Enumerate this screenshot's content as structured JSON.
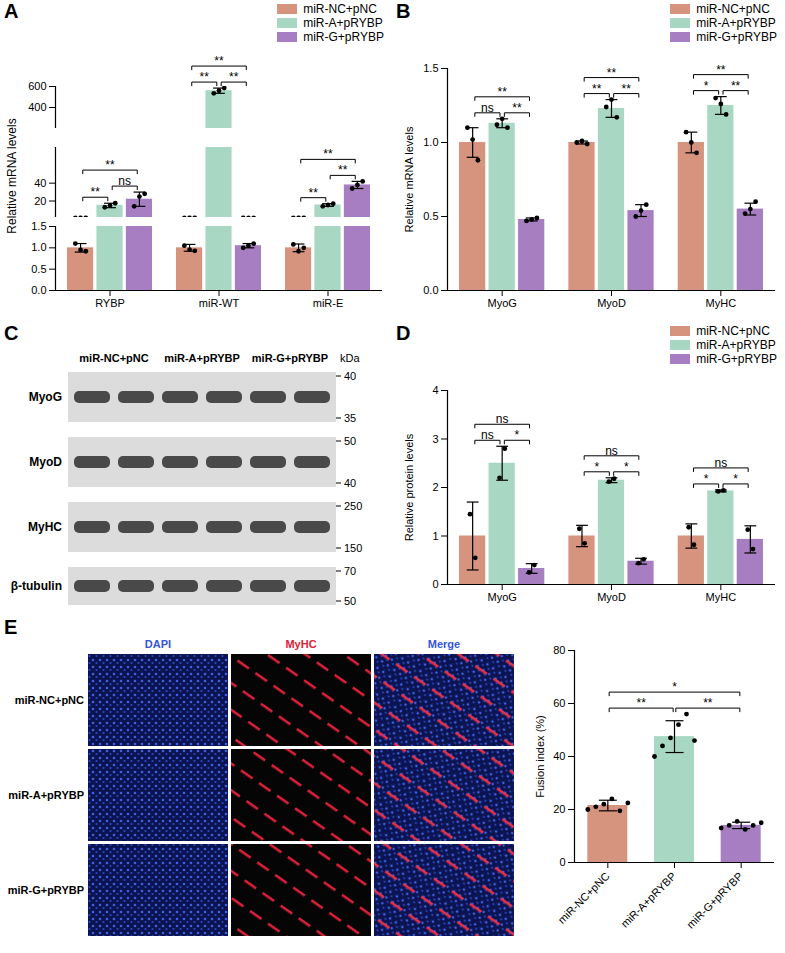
{
  "chart_data": [
    {
      "panel": "A",
      "type": "bar",
      "ylabel": "Relative mRNA levels",
      "legend": "top-right",
      "categories": [
        "RYBP",
        "miR-WT",
        "miR-E"
      ],
      "series": [
        {
          "name": "miR-NC+pNC",
          "color": "#d6937d",
          "values": [
            1.0,
            1.0,
            1.0
          ],
          "errors": [
            0.1,
            0.08,
            0.09
          ],
          "points": [
            [
              1.1,
              0.95,
              0.92
            ],
            [
              1.05,
              0.96,
              0.93
            ],
            [
              1.08,
              0.92,
              1.0
            ]
          ]
        },
        {
          "name": "miR-A+pRYBP",
          "color": "#a8d8c4",
          "values": [
            15,
            560,
            15.5
          ],
          "errors": [
            2.5,
            25,
            1.5
          ],
          "points": [
            [
              13,
              15,
              17.5
            ],
            [
              535,
              560,
              585
            ],
            [
              14,
              15.5,
              17
            ]
          ]
        },
        {
          "name": "miR-G+pRYBP",
          "color": "#a67ec1",
          "values": [
            22,
            1.05,
            38
          ],
          "errors": [
            8,
            0.05,
            4
          ],
          "points": [
            [
              14,
              25,
              28
            ],
            [
              1.0,
              1.05,
              1.1
            ],
            [
              34,
              38,
              42
            ]
          ]
        }
      ],
      "segments": [
        {
          "ylim": [
            0,
            1.5
          ],
          "yticks": [
            {
              "value": 0,
              "label": "0.0"
            },
            {
              "value": 0.5,
              "label": "0.5"
            },
            {
              "value": 1,
              "label": "1.0"
            },
            {
              "value": 1.5,
              "label": "1.5"
            }
          ]
        },
        {
          "ylim": [
            1.5,
            80
          ],
          "yticks": [
            20,
            40
          ]
        },
        {
          "ylim": [
            200,
            600
          ],
          "yticks": [
            400,
            600
          ]
        }
      ],
      "significance": [
        {
          "category": "RYBP",
          "from": "miR-NC+pNC",
          "to": "miR-A+pRYBP",
          "label": "**"
        },
        {
          "category": "RYBP",
          "from": "miR-A+pRYBP",
          "to": "miR-G+pRYBP",
          "label": "ns"
        },
        {
          "category": "RYBP",
          "from": "miR-NC+pNC",
          "to": "miR-G+pRYBP",
          "label": "**"
        },
        {
          "category": "miR-WT",
          "from": "miR-NC+pNC",
          "to": "miR-A+pRYBP",
          "label": "**"
        },
        {
          "category": "miR-WT",
          "from": "miR-A+pRYBP",
          "to": "miR-G+pRYBP",
          "label": "**"
        },
        {
          "category": "miR-WT",
          "from": "miR-NC+pNC",
          "to": "miR-G+pRYBP",
          "label": "**"
        },
        {
          "category": "miR-E",
          "from": "miR-NC+pNC",
          "to": "miR-A+pRYBP",
          "label": "**"
        },
        {
          "category": "miR-E",
          "from": "miR-A+pRYBP",
          "to": "miR-G+pRYBP",
          "label": "**"
        },
        {
          "category": "miR-E",
          "from": "miR-NC+pNC",
          "to": "miR-G+pRYBP",
          "label": "**"
        }
      ]
    },
    {
      "panel": "B",
      "type": "bar",
      "ylabel": "Relative mRNA levels",
      "legend": "top-right",
      "categories": [
        "MyoG",
        "MyoD",
        "MyHC"
      ],
      "ylim": [
        0,
        1.5
      ],
      "yticks": [
        {
          "value": 0,
          "label": "0.0"
        },
        {
          "value": 0.5,
          "label": "0.5"
        },
        {
          "value": 1,
          "label": "1.0"
        },
        {
          "value": 1.5,
          "label": "1.5"
        }
      ],
      "series": [
        {
          "name": "miR-NC+pNC",
          "color": "#d6937d",
          "values": [
            1.0,
            1.0,
            1.0
          ],
          "errors": [
            0.1,
            0.01,
            0.07
          ],
          "points": [
            [
              1.1,
              1.02,
              0.88
            ],
            [
              1.0,
              1.01,
              0.99
            ],
            [
              1.07,
              1.0,
              0.93
            ]
          ]
        },
        {
          "name": "miR-A+pRYBP",
          "color": "#a8d8c4",
          "values": [
            1.13,
            1.23,
            1.25
          ],
          "errors": [
            0.03,
            0.06,
            0.06
          ],
          "points": [
            [
              1.12,
              1.16,
              1.1
            ],
            [
              1.24,
              1.29,
              1.17
            ],
            [
              1.3,
              1.26,
              1.19
            ]
          ]
        },
        {
          "name": "miR-G+pRYBP",
          "color": "#a67ec1",
          "values": [
            0.48,
            0.54,
            0.55
          ],
          "errors": [
            0.01,
            0.04,
            0.04
          ],
          "points": [
            [
              0.47,
              0.48,
              0.49
            ],
            [
              0.5,
              0.54,
              0.58
            ],
            [
              0.52,
              0.55,
              0.6
            ]
          ]
        }
      ],
      "significance": [
        {
          "category": "MyoG",
          "from": "miR-NC+pNC",
          "to": "miR-A+pRYBP",
          "label": "ns"
        },
        {
          "category": "MyoG",
          "from": "miR-A+pRYBP",
          "to": "miR-G+pRYBP",
          "label": "**"
        },
        {
          "category": "MyoG",
          "from": "miR-NC+pNC",
          "to": "miR-G+pRYBP",
          "label": "**"
        },
        {
          "category": "MyoD",
          "from": "miR-NC+pNC",
          "to": "miR-A+pRYBP",
          "label": "**"
        },
        {
          "category": "MyoD",
          "from": "miR-A+pRYBP",
          "to": "miR-G+pRYBP",
          "label": "**"
        },
        {
          "category": "MyoD",
          "from": "miR-NC+pNC",
          "to": "miR-G+pRYBP",
          "label": "**"
        },
        {
          "category": "MyHC",
          "from": "miR-NC+pNC",
          "to": "miR-A+pRYBP",
          "label": "*"
        },
        {
          "category": "MyHC",
          "from": "miR-A+pRYBP",
          "to": "miR-G+pRYBP",
          "label": "**"
        },
        {
          "category": "MyHC",
          "from": "miR-NC+pNC",
          "to": "miR-G+pRYBP",
          "label": "**"
        }
      ]
    },
    {
      "panel": "D",
      "type": "bar",
      "ylabel": "Relative protein levels",
      "legend": "top-right",
      "categories": [
        "MyoG",
        "MyoD",
        "MyHC"
      ],
      "ylim": [
        0,
        4
      ],
      "yticks": [
        0,
        1,
        2,
        3,
        4
      ],
      "series": [
        {
          "name": "miR-NC+pNC",
          "color": "#d6937d",
          "values": [
            1.0,
            1.0,
            1.0
          ],
          "errors": [
            0.7,
            0.22,
            0.25
          ],
          "points": [
            [
              1.45,
              0.55
            ],
            [
              1.15,
              0.85
            ],
            [
              1.18,
              0.82
            ]
          ]
        },
        {
          "name": "miR-A+pRYBP",
          "color": "#a8d8c4",
          "values": [
            2.5,
            2.15,
            1.93
          ],
          "errors": [
            0.35,
            0.05,
            0.02
          ],
          "points": [
            [
              2.2,
              2.8
            ],
            [
              2.12,
              2.18
            ],
            [
              1.92,
              1.94
            ]
          ]
        },
        {
          "name": "miR-G+pRYBP",
          "color": "#a67ec1",
          "values": [
            0.33,
            0.48,
            0.93
          ],
          "errors": [
            0.1,
            0.06,
            0.28
          ],
          "points": [
            [
              0.25,
              0.4
            ],
            [
              0.44,
              0.52
            ],
            [
              1.13,
              0.73
            ]
          ]
        }
      ],
      "significance": [
        {
          "category": "MyoG",
          "from": "miR-NC+pNC",
          "to": "miR-A+pRYBP",
          "label": "ns"
        },
        {
          "category": "MyoG",
          "from": "miR-A+pRYBP",
          "to": "miR-G+pRYBP",
          "label": "*"
        },
        {
          "category": "MyoG",
          "from": "miR-NC+pNC",
          "to": "miR-G+pRYBP",
          "label": "ns"
        },
        {
          "category": "MyoD",
          "from": "miR-NC+pNC",
          "to": "miR-A+pRYBP",
          "label": "*"
        },
        {
          "category": "MyoD",
          "from": "miR-A+pRYBP",
          "to": "miR-G+pRYBP",
          "label": "*"
        },
        {
          "category": "MyoD",
          "from": "miR-NC+pNC",
          "to": "miR-G+pRYBP",
          "label": "ns"
        },
        {
          "category": "MyHC",
          "from": "miR-NC+pNC",
          "to": "miR-A+pRYBP",
          "label": "*"
        },
        {
          "category": "MyHC",
          "from": "miR-A+pRYBP",
          "to": "miR-G+pRYBP",
          "label": "*"
        },
        {
          "category": "MyHC",
          "from": "miR-NC+pNC",
          "to": "miR-G+pRYBP",
          "label": "ns"
        }
      ]
    },
    {
      "panel": "E",
      "type": "bar",
      "ylabel": "Fusion index (%)",
      "categories": [
        "miR-NC+pNC",
        "miR-A+pRYBP",
        "miR-G+pRYBP"
      ],
      "colors": [
        "#d6937d",
        "#a8d8c4",
        "#a67ec1"
      ],
      "values": [
        21.5,
        47.5,
        14
      ],
      "errors": [
        2,
        6,
        1.2
      ],
      "points": [
        [
          20,
          21,
          22,
          24,
          19.5,
          22.5
        ],
        [
          40,
          44,
          47,
          52,
          56,
          46
        ],
        [
          13,
          14,
          15.5,
          12.5,
          14,
          15
        ]
      ],
      "ylim": [
        0,
        80
      ],
      "yticks": [
        0,
        20,
        40,
        60,
        80
      ],
      "significance": [
        {
          "from": "miR-NC+pNC",
          "to": "miR-A+pRYBP",
          "label": "**"
        },
        {
          "from": "miR-A+pRYBP",
          "to": "miR-G+pRYBP",
          "label": "**"
        },
        {
          "from": "miR-NC+pNC",
          "to": "miR-G+pRYBP",
          "label": "*"
        }
      ]
    }
  ],
  "blot": {
    "panel": "C",
    "unit": "kDa",
    "groups": [
      "miR-NC+pNC",
      "miR-A+pRYBP",
      "miR-G+pRYBP"
    ],
    "rows": [
      {
        "label": "MyoG",
        "markers": [
          40,
          35
        ]
      },
      {
        "label": "MyoD",
        "markers": [
          50,
          40
        ]
      },
      {
        "label": "MyHC",
        "markers": [
          250,
          150
        ]
      },
      {
        "label": "β-tubulin",
        "markers": [
          70,
          50
        ]
      }
    ]
  },
  "image_grid": {
    "columns": [
      "DAPI",
      "MyHC",
      "Merge"
    ],
    "rows": [
      "miR-NC+pNC",
      "miR-A+pRYBP",
      "miR-G+pRYBP"
    ]
  }
}
